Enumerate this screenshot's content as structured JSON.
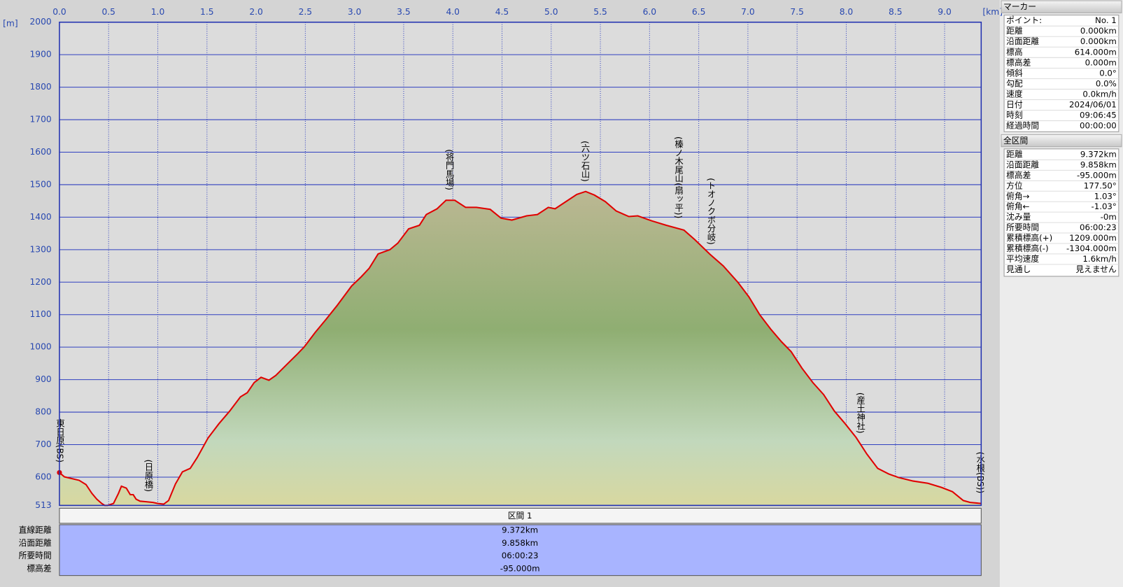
{
  "chart_data": {
    "type": "line",
    "x_unit": "[km]",
    "y_unit": "[m]",
    "xlim": [
      0,
      9.372
    ],
    "xticks": [
      {
        "value": 0,
        "label": "0.0"
      },
      0.5,
      {
        "value": 1,
        "label": "1.0"
      },
      1.5,
      {
        "value": 2,
        "label": "2.0"
      },
      2.5,
      {
        "value": 3,
        "label": "3.0"
      },
      3.5,
      {
        "value": 4,
        "label": "4.0"
      },
      4.5,
      {
        "value": 5,
        "label": "5.0"
      },
      5.5,
      {
        "value": 6,
        "label": "6.0"
      },
      6.5,
      {
        "value": 7,
        "label": "7.0"
      },
      7.5,
      {
        "value": 8,
        "label": "8.0"
      },
      8.5,
      {
        "value": 9,
        "label": "9.0"
      }
    ],
    "ylim": [
      513,
      2000
    ],
    "yticks": [
      513,
      600,
      700,
      800,
      900,
      1000,
      1100,
      1200,
      1300,
      1400,
      1500,
      1600,
      1700,
      1800,
      1900,
      2000
    ],
    "grid": true,
    "x": [
      0,
      0.05,
      0.2,
      0.27,
      0.33,
      0.38,
      0.43,
      0.46,
      0.49,
      0.55,
      0.6,
      0.63,
      0.68,
      0.72,
      0.75,
      0.78,
      0.82,
      0.89,
      0.95,
      1.0,
      1.06,
      1.11,
      1.18,
      1.25,
      1.33,
      1.4,
      1.51,
      1.62,
      1.73,
      1.84,
      1.91,
      1.98,
      2.05,
      2.13,
      2.2,
      2.31,
      2.42,
      2.49,
      2.6,
      2.71,
      2.82,
      2.97,
      3.07,
      3.15,
      3.24,
      3.36,
      3.44,
      3.55,
      3.66,
      3.73,
      3.84,
      3.93,
      4.02,
      4.13,
      4.24,
      4.38,
      4.49,
      4.6,
      4.75,
      4.86,
      4.97,
      5.04,
      5.15,
      5.26,
      5.35,
      5.44,
      5.55,
      5.66,
      5.79,
      5.88,
      6.02,
      6.17,
      6.35,
      6.46,
      6.61,
      6.75,
      6.9,
      7.01,
      7.12,
      7.23,
      7.34,
      7.44,
      7.55,
      7.66,
      7.77,
      7.88,
      7.99,
      8.1,
      8.21,
      8.32,
      8.43,
      8.53,
      8.68,
      8.83,
      8.97,
      9.08,
      9.19,
      9.26,
      9.372
    ],
    "series": [
      {
        "color": "#e00000",
        "values": [
          614,
          601,
          590,
          577,
          550,
          532,
          519,
          513,
          513,
          519,
          550,
          572,
          566,
          546,
          546,
          532,
          526,
          524,
          522,
          519,
          517,
          528,
          579,
          616,
          627,
          660,
          720,
          764,
          803,
          847,
          860,
          891,
          907,
          898,
          913,
          946,
          979,
          1001,
          1045,
          1085,
          1127,
          1188,
          1217,
          1243,
          1287,
          1300,
          1320,
          1364,
          1375,
          1408,
          1426,
          1452,
          1452,
          1430,
          1430,
          1424,
          1397,
          1391,
          1404,
          1408,
          1430,
          1426,
          1448,
          1470,
          1479,
          1468,
          1448,
          1419,
          1402,
          1404,
          1389,
          1375,
          1360,
          1331,
          1287,
          1250,
          1199,
          1155,
          1100,
          1056,
          1017,
          986,
          935,
          891,
          854,
          803,
          764,
          722,
          671,
          627,
          610,
          599,
          588,
          581,
          568,
          555,
          528,
          522,
          519
        ]
      }
    ],
    "annotations": [
      {
        "x": 0,
        "label": "東日原(BS)"
      },
      {
        "x": 0.9,
        "label": "(日原橋)"
      },
      {
        "x": 3.96,
        "label": "(将門馬場)"
      },
      {
        "x": 5.34,
        "label": "(六ツ石山)"
      },
      {
        "x": 6.29,
        "label": "(榛ノ木尾山(扇ッ平))"
      },
      {
        "x": 6.62,
        "label": "(トオノクボ分岐)"
      },
      {
        "x": 8.14,
        "label": "(産土神社)"
      },
      {
        "x": 9.372,
        "label": "(水根(BS))"
      }
    ]
  },
  "segment_table": {
    "title": "区間 1",
    "rows": [
      [
        "直線距離",
        "9.372km"
      ],
      [
        "沿面距離",
        "9.858km"
      ],
      [
        "所要時間",
        "06:00:23"
      ],
      [
        "標高差",
        "-95.000m"
      ]
    ]
  },
  "marker_panel": {
    "title": "マーカー",
    "rows": [
      [
        "ポイント:",
        "No. 1"
      ],
      [
        "距離",
        "0.000km"
      ],
      [
        "沿面距離",
        "0.000km"
      ],
      [
        "標高",
        "614.000m"
      ],
      [
        "標高差",
        "0.000m"
      ],
      [
        "傾斜",
        "0.0°"
      ],
      [
        "勾配",
        "0.0%"
      ],
      [
        "速度",
        "0.0km/h"
      ],
      [
        "日付",
        "2024/06/01"
      ],
      [
        "時刻",
        "09:06:45"
      ],
      [
        "経過時間",
        "00:00:00"
      ]
    ]
  },
  "total_panel": {
    "title": "全区間",
    "rows": [
      [
        "距離",
        "9.372km"
      ],
      [
        "沿面距離",
        "9.858km"
      ],
      [
        "標高差",
        "-95.000m"
      ],
      [
        "方位",
        "177.50°"
      ],
      [
        "俯角→",
        "1.03°"
      ],
      [
        "俯角←",
        "-1.03°"
      ],
      [
        "沈み量",
        "-0m"
      ],
      [
        "所要時間",
        "06:00:23"
      ],
      [
        "累積標高(+)",
        "1209.000m"
      ],
      [
        "累積標高(-)",
        "-1304.000m"
      ],
      [
        "平均速度",
        "1.6km/h"
      ],
      [
        "見通し",
        "見えません"
      ]
    ]
  }
}
